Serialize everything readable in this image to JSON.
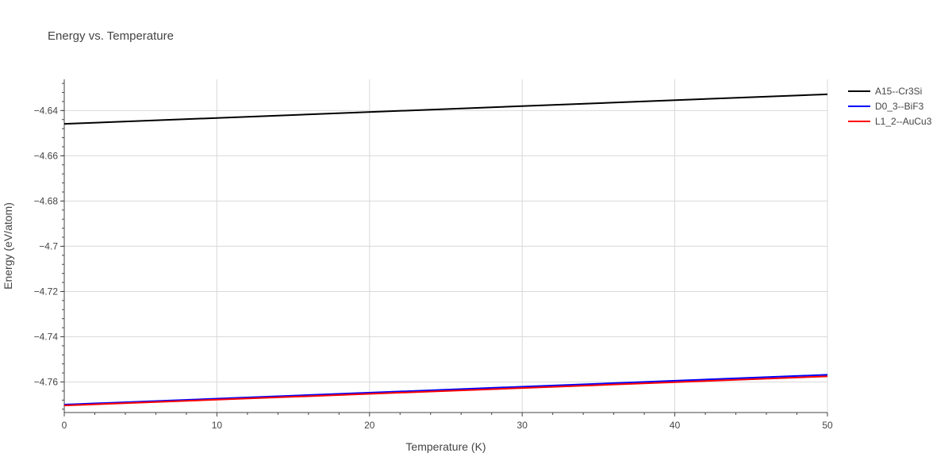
{
  "chart_data": {
    "type": "line",
    "title": "Energy vs. Temperature",
    "xlabel": "Temperature (K)",
    "ylabel": "Energy (eV/atom)",
    "xlim": [
      0,
      50
    ],
    "ylim": [
      -4.7735,
      -4.6262
    ],
    "x_ticks": [
      0,
      10,
      20,
      30,
      40,
      50
    ],
    "x_tick_labels": [
      "0",
      "10",
      "20",
      "30",
      "40",
      "50"
    ],
    "y_ticks": [
      -4.76,
      -4.74,
      -4.72,
      -4.7,
      -4.68,
      -4.66,
      -4.64
    ],
    "y_tick_labels": [
      "−4.76",
      "−4.74",
      "−4.72",
      "−4.7",
      "−4.68",
      "−4.66",
      "−4.64"
    ],
    "grid": true,
    "legend_position": "top-right",
    "series": [
      {
        "name": "A15--Cr3Si",
        "color": "#000000",
        "x": [
          0,
          50
        ],
        "y": [
          -4.6459,
          -4.6328
        ]
      },
      {
        "name": "D0_3--BiF3",
        "color": "#0000ff",
        "x": [
          0,
          50
        ],
        "y": [
          -4.77,
          -4.7568
        ]
      },
      {
        "name": "L1_2--AuCu3",
        "color": "#ff0000",
        "x": [
          0,
          50
        ],
        "y": [
          -4.7704,
          -4.7575
        ]
      }
    ]
  }
}
